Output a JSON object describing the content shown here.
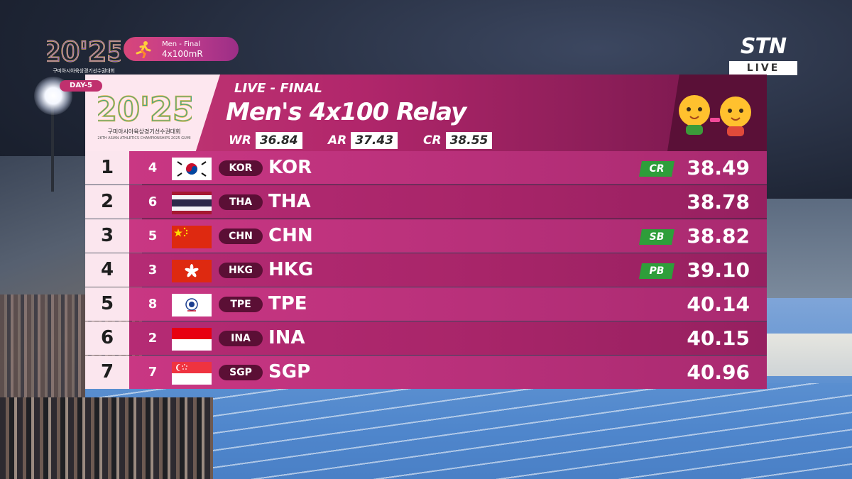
{
  "overlay": {
    "event_badge_line1": "Men - Final",
    "event_badge_line2": "4x100mR",
    "day_badge": "DAY-5",
    "logo_text": "20'25",
    "logo_sub": "구미아시아육상경기선수권대회",
    "header_logo_sub": "구미아시아육상경기선수권대회",
    "header_logo_sub2": "26TH ASIAN ATHLETICS CHAMPIONSHIPS 2025 GUMI",
    "broadcaster": "STN",
    "broadcaster_live": "LIVE"
  },
  "header": {
    "status": "LIVE - FINAL",
    "title": "Men's 4x100 Relay",
    "records": [
      {
        "label": "WR",
        "value": "36.84"
      },
      {
        "label": "AR",
        "value": "37.43"
      },
      {
        "label": "CR",
        "value": "38.55"
      }
    ]
  },
  "results": [
    {
      "rank": "1",
      "lane": "4",
      "code": "KOR",
      "country": "KOR",
      "badge": "CR",
      "time": "38.49",
      "flag": "kor"
    },
    {
      "rank": "2",
      "lane": "6",
      "code": "THA",
      "country": "THA",
      "badge": "",
      "time": "38.78",
      "flag": "tha"
    },
    {
      "rank": "3",
      "lane": "5",
      "code": "CHN",
      "country": "CHN",
      "badge": "SB",
      "time": "38.82",
      "flag": "chn"
    },
    {
      "rank": "4",
      "lane": "3",
      "code": "HKG",
      "country": "HKG",
      "badge": "PB",
      "time": "39.10",
      "flag": "hkg"
    },
    {
      "rank": "5",
      "lane": "8",
      "code": "TPE",
      "country": "TPE",
      "badge": "",
      "time": "40.14",
      "flag": "tpe"
    },
    {
      "rank": "6",
      "lane": "2",
      "code": "INA",
      "country": "INA",
      "badge": "",
      "time": "40.15",
      "flag": "ina"
    },
    {
      "rank": "7",
      "lane": "7",
      "code": "SGP",
      "country": "SGP",
      "badge": "",
      "time": "40.96",
      "flag": "sgp"
    }
  ],
  "colors": {
    "header_accent": "#b1266b",
    "record_badge_green": "#2e9e3a",
    "rank_box": "#fbe6ee"
  }
}
